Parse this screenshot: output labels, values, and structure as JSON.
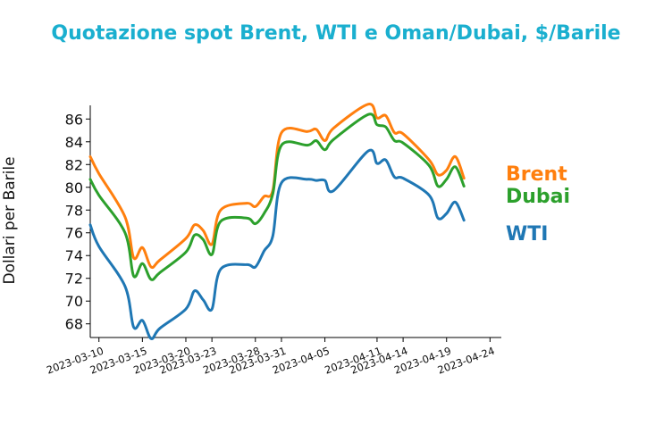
{
  "chart_data": {
    "type": "line",
    "title": "Quotazione spot Brent, WTI e Oman/Dubai, $/Barile",
    "ylabel": "Dollari per Barile",
    "xlabel": "",
    "ylim": [
      66.8,
      87.2
    ],
    "yticks": [
      68,
      70,
      72,
      74,
      76,
      78,
      80,
      82,
      84,
      86
    ],
    "xticks": [
      "2023-03-10",
      "2023-03-15",
      "2023-03-20",
      "2023-03-23",
      "2023-03-28",
      "2023-03-31",
      "2023-04-05",
      "2023-04-11",
      "2023-04-14",
      "2023-04-19",
      "2023-04-24"
    ],
    "grid": false,
    "legend": "labels at line ends (right)",
    "x": [
      "2023-03-09",
      "2023-03-10",
      "2023-03-13",
      "2023-03-14",
      "2023-03-15",
      "2023-03-16",
      "2023-03-17",
      "2023-03-20",
      "2023-03-21",
      "2023-03-22",
      "2023-03-23",
      "2023-03-24",
      "2023-03-27",
      "2023-03-28",
      "2023-03-29",
      "2023-03-30",
      "2023-03-31",
      "2023-04-03",
      "2023-04-04",
      "2023-04-05",
      "2023-04-06",
      "2023-04-10",
      "2023-04-11",
      "2023-04-12",
      "2023-04-13",
      "2023-04-14",
      "2023-04-17",
      "2023-04-18",
      "2023-04-19",
      "2023-04-20",
      "2023-04-21",
      "2023-04-24",
      "2023-04-25"
    ],
    "series": [
      {
        "name": "Brent",
        "color": "#FF7F0E",
        "values": [
          82.7,
          81.2,
          77.4,
          73.8,
          74.7,
          73.0,
          73.6,
          75.5,
          76.7,
          76.2,
          75.0,
          78.0,
          78.6,
          78.3,
          79.2,
          79.7,
          84.8,
          84.9,
          85.1,
          84.1,
          85.2,
          87.3,
          86.1,
          86.3,
          84.8,
          84.7,
          82.4,
          81.1,
          81.5,
          82.7,
          80.8,
          null,
          null
        ]
      },
      {
        "name": "Dubai",
        "color": "#2CA02C",
        "values": [
          80.7,
          79.3,
          76.0,
          72.2,
          73.3,
          71.9,
          72.5,
          74.3,
          75.8,
          75.4,
          74.1,
          77.0,
          77.3,
          76.8,
          77.7,
          79.4,
          83.7,
          83.7,
          84.1,
          83.3,
          84.2,
          86.4,
          85.5,
          85.3,
          84.1,
          83.9,
          81.9,
          80.1,
          80.7,
          81.8,
          80.1,
          null,
          null
        ]
      },
      {
        "name": "WTI",
        "color": "#1F77B4",
        "values": [
          76.7,
          74.8,
          71.3,
          67.7,
          68.3,
          66.7,
          67.6,
          69.3,
          70.9,
          70.1,
          69.3,
          72.8,
          73.2,
          73.0,
          74.4,
          75.7,
          80.4,
          80.7,
          80.6,
          80.6,
          79.7,
          83.2,
          82.1,
          82.4,
          80.9,
          80.8,
          79.3,
          77.3,
          77.7,
          78.7,
          77.1,
          null,
          null
        ]
      }
    ]
  }
}
